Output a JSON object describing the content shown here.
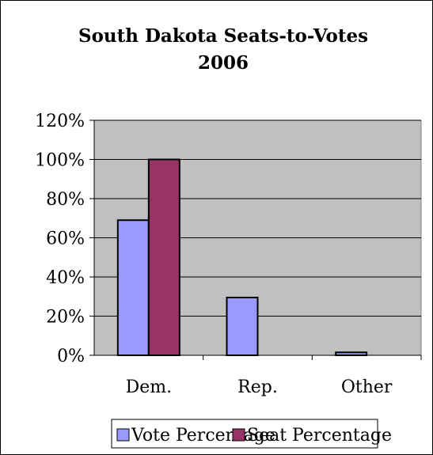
{
  "chart_data": {
    "type": "bar",
    "title_line1": "South Dakota Seats-to-Votes",
    "title_line2": "2006",
    "categories": [
      "Dem.",
      "Rep.",
      "Other"
    ],
    "series": [
      {
        "name": "Vote Percentage",
        "values": [
          69,
          29.5,
          1.5
        ],
        "color": "#9999ff"
      },
      {
        "name": "Seat Percentage",
        "values": [
          100,
          0,
          0
        ],
        "color": "#993366"
      }
    ],
    "ylim": [
      0,
      120
    ],
    "y_ticks": [
      0,
      20,
      40,
      60,
      80,
      100,
      120
    ],
    "y_tick_labels": [
      "0%",
      "20%",
      "40%",
      "60%",
      "80%",
      "100%",
      "120%"
    ],
    "plot_background": "#c0c0c0",
    "grid": true,
    "legend_position": "bottom"
  }
}
